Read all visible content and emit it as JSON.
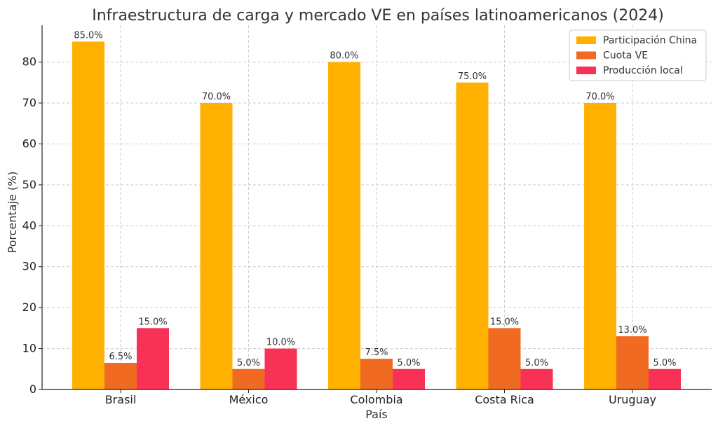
{
  "chart_data": {
    "type": "bar",
    "title": "Infraestructura de carga y mercado VE en países latinoamericanos (2024)",
    "xlabel": "País",
    "ylabel": "Porcentaje (%)",
    "categories": [
      "Brasil",
      "México",
      "Colombia",
      "Costa Rica",
      "Uruguay"
    ],
    "series": [
      {
        "name": "Participación China",
        "color": "#FFB000",
        "values": [
          85.0,
          70.0,
          80.0,
          75.0,
          70.0
        ]
      },
      {
        "name": "Cuota VE",
        "color": "#F06A22",
        "values": [
          6.5,
          5.0,
          7.5,
          15.0,
          13.0
        ]
      },
      {
        "name": "Producción local",
        "color": "#F83157",
        "values": [
          15.0,
          10.0,
          5.0,
          5.0,
          5.0
        ]
      }
    ],
    "value_labels": [
      [
        "85.0%",
        "70.0%",
        "80.0%",
        "75.0%",
        "70.0%"
      ],
      [
        "6.5%",
        "5.0%",
        "7.5%",
        "15.0%",
        "13.0%"
      ],
      [
        "15.0%",
        "10.0%",
        "5.0%",
        "5.0%",
        "5.0%"
      ]
    ],
    "ylim": [
      0,
      89
    ],
    "yticks": [
      0,
      10,
      20,
      30,
      40,
      50,
      60,
      70,
      80
    ],
    "grid": true,
    "legend_position": "top-right"
  }
}
